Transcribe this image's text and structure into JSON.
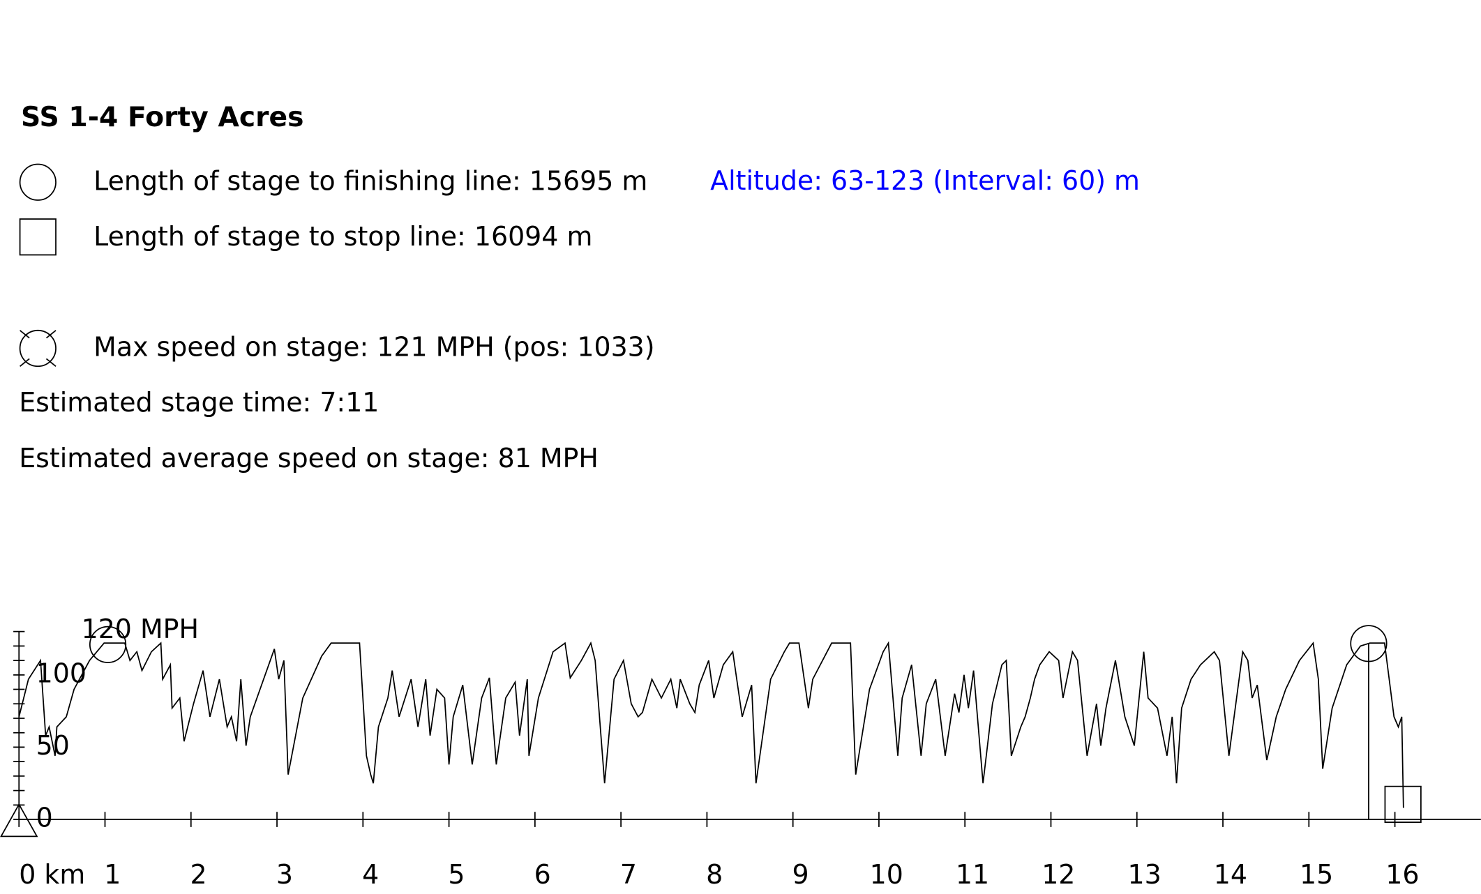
{
  "header": {
    "title": "SS 1-4 Forty Acres",
    "stats": [
      {
        "label": "Length of stage to finishing line:",
        "value": 15695,
        "unit": "m"
      },
      {
        "label": "Length of stage to stop line:",
        "value": 16094,
        "unit": "m"
      },
      {
        "label": "Max speed on stage:",
        "value": 121,
        "unit": "MPH",
        "pos_prefix": "(pos:",
        "pos": 1033,
        "pos_suffix": ")"
      }
    ],
    "altitude": "Altitude: 63-123 (Interval: 60) m",
    "stage_time": "Estimated stage time: 7:11",
    "avg_speed": "Estimated average speed on stage: 81 MPH"
  },
  "chart_data": {
    "type": "line",
    "color": "#000000",
    "x": [
      0,
      0.11,
      0.25,
      0.31,
      0.35,
      0.42,
      0.44,
      0.55,
      0.64,
      0.82,
      0.99,
      1.23,
      1.29,
      1.37,
      1.43,
      1.54,
      1.65,
      1.67,
      1.76,
      1.78,
      1.87,
      1.92,
      2.03,
      2.14,
      2.22,
      2.33,
      2.42,
      2.47,
      2.53,
      2.58,
      2.64,
      2.69,
      2.97,
      3.02,
      3.08,
      3.13,
      3.3,
      3.52,
      3.63,
      3.96,
      4.04,
      4.09,
      4.12,
      4.18,
      4.29,
      4.34,
      4.42,
      4.56,
      4.64,
      4.73,
      4.78,
      4.86,
      4.95,
      5,
      5.05,
      5.16,
      5.27,
      5.38,
      5.47,
      5.55,
      5.66,
      5.77,
      5.82,
      5.91,
      5.93,
      6.04,
      6.21,
      6.35,
      6.41,
      6.54,
      6.65,
      6.7,
      6.81,
      6.92,
      7.03,
      7.12,
      7.2,
      7.25,
      7.36,
      7.47,
      7.58,
      7.65,
      7.69,
      7.8,
      7.86,
      7.91,
      8.02,
      8.08,
      8.19,
      8.3,
      8.41,
      8.52,
      8.57,
      8.74,
      8.9,
      8.96,
      9.07,
      9.18,
      9.23,
      9.45,
      9.67,
      9.73,
      9.89,
      10.05,
      10.11,
      10.22,
      10.27,
      10.38,
      10.49,
      10.55,
      10.66,
      10.77,
      10.88,
      10.93,
      10.99,
      11.04,
      11.1,
      11.21,
      11.32,
      11.43,
      11.48,
      11.54,
      11.65,
      11.7,
      11.76,
      11.81,
      11.87,
      11.98,
      12.09,
      12.14,
      12.25,
      12.31,
      12.42,
      12.53,
      12.58,
      12.64,
      12.75,
      12.86,
      12.97,
      13.08,
      13.13,
      13.24,
      13.35,
      13.41,
      13.46,
      13.52,
      13.63,
      13.74,
      13.9,
      13.96,
      14.07,
      14.23,
      14.29,
      14.34,
      14.4,
      14.51,
      14.62,
      14.73,
      14.89,
      15.05,
      15.11,
      15.16,
      15.27,
      15.44,
      15.6,
      15.71,
      15.88,
      15.99,
      16.04,
      16.08,
      16.1
    ],
    "values": [
      71,
      97,
      110,
      58,
      64,
      44,
      64,
      71,
      90,
      110,
      122,
      122,
      110,
      116,
      103,
      116,
      122,
      97,
      107,
      77,
      84,
      54,
      80,
      103,
      71,
      97,
      64,
      71,
      54,
      97,
      51,
      71,
      118,
      97,
      110,
      31,
      84,
      113,
      122,
      122,
      44,
      31,
      25,
      64,
      84,
      103,
      71,
      97,
      64,
      97,
      58,
      90,
      84,
      38,
      71,
      93,
      38,
      84,
      98,
      38,
      84,
      95,
      58,
      97,
      44,
      84,
      116,
      122,
      98,
      110,
      122,
      110,
      25,
      97,
      110,
      80,
      71,
      74,
      97,
      84,
      97,
      77,
      97,
      80,
      74,
      93,
      110,
      84,
      107,
      116,
      71,
      93,
      25,
      97,
      116,
      122,
      122,
      77,
      97,
      122,
      122,
      31,
      90,
      116,
      122,
      44,
      84,
      107,
      44,
      80,
      97,
      44,
      87,
      74,
      100,
      77,
      103,
      25,
      80,
      107,
      110,
      44,
      64,
      71,
      84,
      97,
      107,
      116,
      110,
      84,
      116,
      110,
      44,
      80,
      51,
      77,
      110,
      71,
      51,
      116,
      84,
      77,
      44,
      71,
      25,
      77,
      97,
      107,
      116,
      110,
      44,
      116,
      110,
      84,
      93,
      41,
      71,
      90,
      110,
      122,
      97,
      35,
      77,
      107,
      120,
      122,
      122,
      71,
      64,
      71,
      8
    ],
    "xlim": [
      0,
      17
    ],
    "xticks": [
      {
        "value": 0,
        "label": "0 km"
      },
      1,
      2,
      3,
      4,
      5,
      6,
      7,
      8,
      9,
      10,
      11,
      12,
      13,
      14,
      15,
      16
    ],
    "ylim": [
      0,
      130
    ],
    "yticks": [
      0,
      50,
      100,
      {
        "value": 120,
        "label": "120 MPH"
      }
    ],
    "yminorticks": [
      10,
      20,
      30,
      40,
      60,
      70,
      80,
      90,
      110,
      130
    ]
  }
}
